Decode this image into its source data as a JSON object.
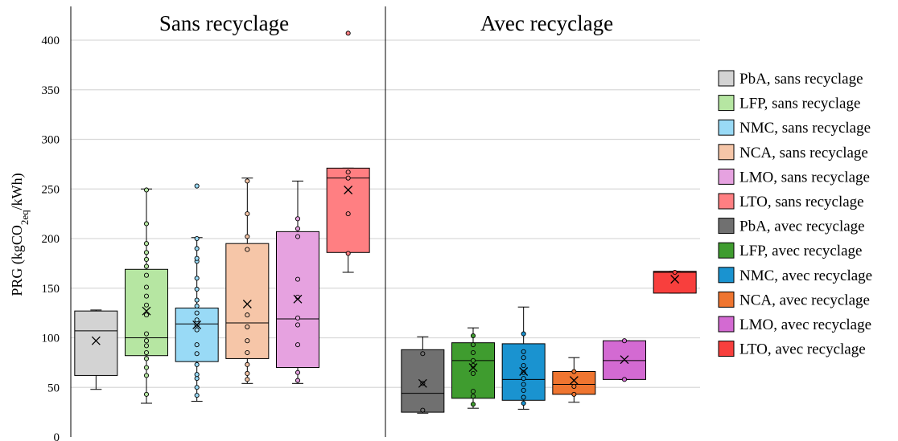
{
  "chart_data": {
    "type": "box",
    "ylabel": {
      "main": "PRG (kgCO",
      "sub": "2eq",
      "tail": "/kWh)"
    },
    "ylim": [
      0,
      410
    ],
    "yticks": [
      0,
      50,
      100,
      150,
      200,
      250,
      300,
      350,
      400
    ],
    "grid": "horizontal",
    "legend_position": "right",
    "panels": [
      {
        "title": "Sans recyclage",
        "start": 0,
        "end": 6
      },
      {
        "title": "Avec recyclage",
        "start": 6,
        "end": 12
      }
    ],
    "series": [
      {
        "name": "PbA, sans recyclage",
        "color": "#d3d3d3",
        "min": 48,
        "q1": 62,
        "median": 107,
        "q3": 127,
        "max": 128,
        "mean": 97,
        "points": []
      },
      {
        "name": "LFP, sans recyclage",
        "color": "#b6e6a2",
        "min": 34,
        "q1": 82,
        "median": 100,
        "q3": 169,
        "max": 250,
        "mean": 127,
        "points": [
          43,
          62,
          70,
          79,
          85,
          92,
          97,
          104,
          123,
          133,
          142,
          151,
          163,
          172,
          179,
          186,
          195,
          215,
          249
        ]
      },
      {
        "name": "NMC, sans recyclage",
        "color": "#99daf6",
        "min": 36,
        "q1": 76,
        "median": 114,
        "q3": 130,
        "max": 201,
        "mean": 113,
        "points": [
          42,
          50,
          59,
          63,
          73,
          84,
          93,
          108,
          113,
          116,
          118,
          125,
          132,
          138,
          149,
          160,
          177,
          180,
          190,
          200,
          253
        ]
      },
      {
        "name": "NCA, sans recyclage",
        "color": "#f6c6a8",
        "min": 54,
        "q1": 79,
        "median": 115,
        "q3": 195,
        "max": 261,
        "mean": 134,
        "points": [
          58,
          64,
          73,
          85,
          97,
          111,
          123,
          189,
          202,
          225,
          258
        ]
      },
      {
        "name": "LMO, sans recyclage",
        "color": "#e6a2e0",
        "min": 54,
        "q1": 70,
        "median": 119,
        "q3": 207,
        "max": 258,
        "mean": 139,
        "points": [
          57,
          65,
          93,
          113,
          120,
          141,
          159,
          202,
          210,
          220
        ]
      },
      {
        "name": "LTO, sans recyclage",
        "color": "#ff7f82",
        "min": 166,
        "q1": 186,
        "median": 261,
        "q3": 271,
        "max": 271,
        "mean": 249,
        "points": [
          185,
          225,
          261,
          267,
          407
        ]
      },
      {
        "name": "PbA, avec recyclage",
        "color": "#707070",
        "min": 24,
        "q1": 25,
        "median": 44,
        "q3": 88,
        "max": 101,
        "mean": 54,
        "points": [
          27,
          54,
          84
        ]
      },
      {
        "name": "LFP, avec recyclage",
        "color": "#3f9c2f",
        "min": 29,
        "q1": 39,
        "median": 77,
        "q3": 95,
        "max": 110,
        "mean": 70,
        "points": [
          33,
          41,
          46,
          64,
          72,
          77,
          85,
          93,
          102
        ]
      },
      {
        "name": "NMC, avec recyclage",
        "color": "#1a93d0",
        "min": 28,
        "q1": 37,
        "median": 58,
        "q3": 94,
        "max": 131,
        "mean": 66,
        "points": [
          34,
          40,
          47,
          53,
          59,
          65,
          72,
          80,
          86,
          104
        ]
      },
      {
        "name": "NCA, avec recyclage",
        "color": "#ef7530",
        "min": 35,
        "q1": 43,
        "median": 53,
        "q3": 66,
        "max": 80,
        "mean": 57,
        "points": [
          43,
          51,
          66
        ]
      },
      {
        "name": "LMO, avec recyclage",
        "color": "#d36ad2",
        "min": 58,
        "q1": 58,
        "median": 77,
        "q3": 97,
        "max": 97,
        "mean": 78,
        "points": [
          58,
          97
        ]
      },
      {
        "name": "LTO, avec recyclage",
        "color": "#f83f3d",
        "min": 145,
        "q1": 145,
        "median": 166,
        "q3": 167,
        "max": 167,
        "mean": 159,
        "points": [
          166
        ]
      }
    ]
  }
}
